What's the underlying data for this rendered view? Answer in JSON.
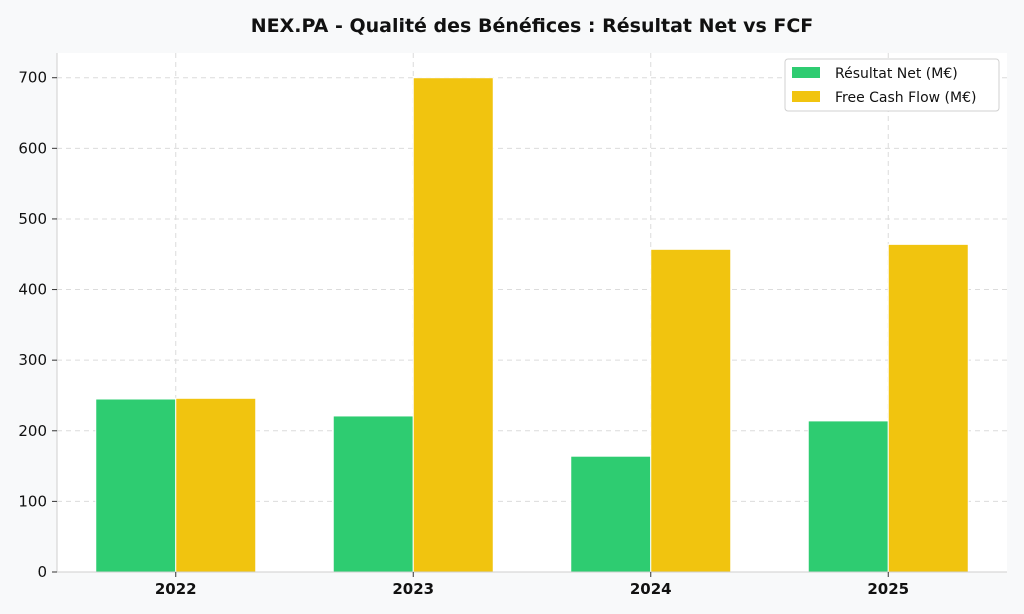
{
  "chart_data": {
    "type": "bar",
    "title": "NEX.PA - Qualité des Bénéfices : Résultat Net vs FCF",
    "xlabel": "",
    "ylabel": "",
    "categories": [
      "2022",
      "2023",
      "2024",
      "2025"
    ],
    "series": [
      {
        "name": "Résultat Net (M€)",
        "values": [
          245,
          221,
          164,
          214
        ],
        "color": "#2ecc71"
      },
      {
        "name": "Free Cash Flow (M€)",
        "values": [
          246,
          700,
          457,
          464
        ],
        "color": "#f1c40f"
      }
    ],
    "ylim": [
      0,
      735
    ],
    "yticks": [
      "0",
      "100",
      "200",
      "300",
      "400",
      "500",
      "600",
      "700"
    ],
    "grid": true,
    "legend_position": "top-right"
  }
}
